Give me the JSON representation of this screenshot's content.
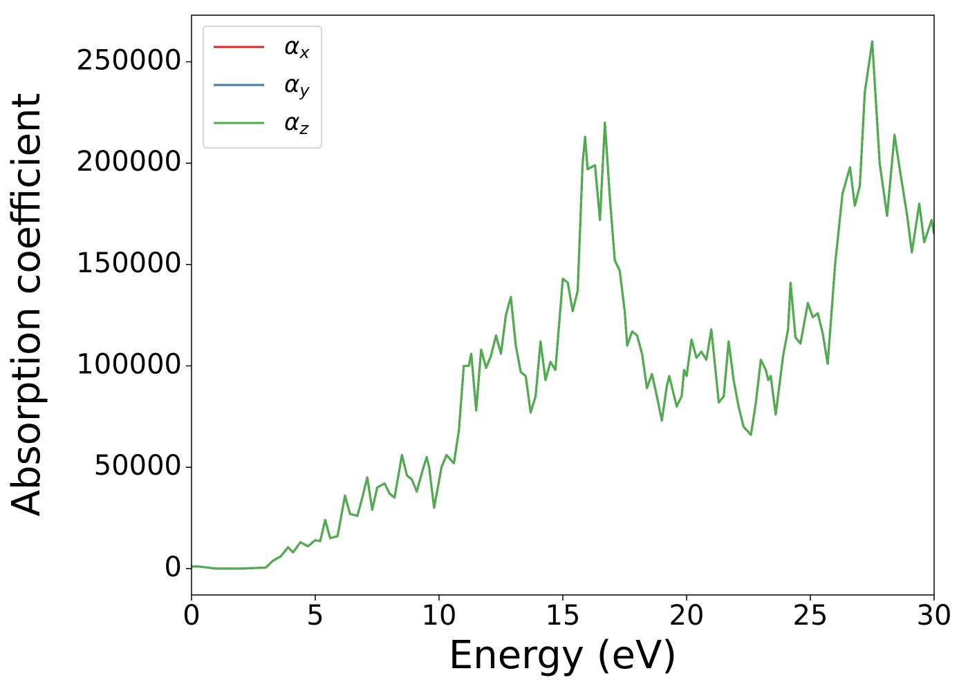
{
  "chart_data": {
    "type": "line",
    "xlabel": "Energy (eV)",
    "ylabel": "Absorption coefficient",
    "xlim": [
      0,
      30
    ],
    "ylim": [
      -13000,
      273000
    ],
    "xticks": [
      0,
      5,
      10,
      15,
      20,
      25,
      30
    ],
    "yticks": [
      0,
      50000,
      100000,
      150000,
      200000,
      250000
    ],
    "grid": false,
    "legend": "upper left",
    "x": [
      0,
      0.3,
      1,
      2,
      3,
      3.3,
      3.6,
      3.9,
      4.1,
      4.4,
      4.7,
      5,
      5.2,
      5.4,
      5.6,
      5.9,
      6.2,
      6.4,
      6.7,
      6.9,
      7.1,
      7.3,
      7.5,
      7.8,
      8,
      8.2,
      8.5,
      8.7,
      8.9,
      9.1,
      9.3,
      9.5,
      9.6,
      9.8,
      10.1,
      10.3,
      10.6,
      10.8,
      11,
      11.2,
      11.3,
      11.5,
      11.7,
      11.9,
      12.1,
      12.3,
      12.5,
      12.7,
      12.9,
      13.1,
      13.3,
      13.5,
      13.7,
      13.9,
      14.1,
      14.3,
      14.5,
      14.7,
      15,
      15.2,
      15.4,
      15.6,
      15.8,
      15.9,
      16,
      16.3,
      16.5,
      16.7,
      16.9,
      17.1,
      17.3,
      17.5,
      17.6,
      17.8,
      18,
      18.2,
      18.4,
      18.6,
      18.8,
      19,
      19.2,
      19.3,
      19.6,
      19.8,
      19.9,
      20,
      20.2,
      20.4,
      20.6,
      20.8,
      21,
      21.3,
      21.5,
      21.7,
      21.9,
      22.1,
      22.3,
      22.6,
      22.8,
      23,
      23.2,
      23.3,
      23.4,
      23.6,
      23.9,
      24.1,
      24.2,
      24.4,
      24.6,
      24.9,
      25.1,
      25.3,
      25.5,
      25.7,
      26,
      26.3,
      26.6,
      26.8,
      27,
      27.2,
      27.5,
      27.8,
      28.1,
      28.4,
      28.6,
      28.9,
      29.1,
      29.4,
      29.6,
      29.9,
      30
    ],
    "series": [
      {
        "name": "αx",
        "color": "#d62728",
        "values": [
          1000,
          1000,
          0,
          0,
          500,
          4000,
          6000,
          10500,
          8000,
          13000,
          11000,
          14000,
          13500,
          24000,
          15000,
          16000,
          36000,
          27000,
          26000,
          35000,
          45000,
          29000,
          40000,
          42000,
          37000,
          35000,
          56000,
          46000,
          44000,
          38000,
          47000,
          55000,
          50000,
          30000,
          50000,
          56000,
          52000,
          68000,
          100000,
          100000,
          106000,
          78000,
          108000,
          99000,
          105000,
          115000,
          106000,
          125000,
          134000,
          110000,
          97000,
          95000,
          77000,
          85000,
          112000,
          93000,
          102000,
          98000,
          143000,
          141000,
          127000,
          137000,
          200000,
          213000,
          197000,
          199000,
          172000,
          220000,
          183000,
          152000,
          147000,
          127000,
          110000,
          117000,
          115000,
          106000,
          89000,
          96000,
          85000,
          73000,
          90000,
          95000,
          80000,
          85000,
          98000,
          95000,
          113000,
          104000,
          107000,
          103000,
          118000,
          82000,
          85000,
          112000,
          93000,
          80000,
          70000,
          66000,
          82000,
          103000,
          98000,
          93000,
          95000,
          76000,
          105000,
          118000,
          141000,
          114000,
          111000,
          131000,
          124000,
          126000,
          116000,
          101000,
          150000,
          185000,
          198000,
          179000,
          189000,
          235000,
          260000,
          200000,
          174000,
          214000,
          198000,
          175000,
          156000,
          180000,
          161000,
          172000,
          165000
        ]
      },
      {
        "name": "αy",
        "color": "#3a7db5",
        "values": [
          1000,
          1000,
          0,
          0,
          500,
          4000,
          6000,
          10500,
          8000,
          13000,
          11000,
          14000,
          13500,
          24000,
          15000,
          16000,
          36000,
          27000,
          26000,
          35000,
          45000,
          29000,
          40000,
          42000,
          37000,
          35000,
          56000,
          46000,
          44000,
          38000,
          47000,
          55000,
          50000,
          30000,
          50000,
          56000,
          52000,
          68000,
          100000,
          100000,
          106000,
          78000,
          108000,
          99000,
          105000,
          115000,
          106000,
          125000,
          134000,
          110000,
          97000,
          95000,
          77000,
          85000,
          112000,
          93000,
          102000,
          98000,
          143000,
          141000,
          127000,
          137000,
          200000,
          213000,
          197000,
          199000,
          172000,
          220000,
          183000,
          152000,
          147000,
          127000,
          110000,
          117000,
          115000,
          106000,
          89000,
          96000,
          85000,
          73000,
          90000,
          95000,
          80000,
          85000,
          98000,
          95000,
          113000,
          104000,
          107000,
          103000,
          118000,
          82000,
          85000,
          112000,
          93000,
          80000,
          70000,
          66000,
          82000,
          103000,
          98000,
          93000,
          95000,
          76000,
          105000,
          118000,
          141000,
          114000,
          111000,
          131000,
          124000,
          126000,
          116000,
          101000,
          150000,
          185000,
          198000,
          179000,
          189000,
          235000,
          260000,
          200000,
          174000,
          214000,
          198000,
          175000,
          156000,
          180000,
          161000,
          172000,
          165000
        ]
      },
      {
        "name": "αz",
        "color": "#4daf4a",
        "values": [
          1000,
          1000,
          0,
          0,
          500,
          4000,
          6000,
          10500,
          8000,
          13000,
          11000,
          14000,
          13500,
          24000,
          15000,
          16000,
          36000,
          27000,
          26000,
          35000,
          45000,
          29000,
          40000,
          42000,
          37000,
          35000,
          56000,
          46000,
          44000,
          38000,
          47000,
          55000,
          50000,
          30000,
          50000,
          56000,
          52000,
          68000,
          100000,
          100000,
          106000,
          78000,
          108000,
          99000,
          105000,
          115000,
          106000,
          125000,
          134000,
          110000,
          97000,
          95000,
          77000,
          85000,
          112000,
          93000,
          102000,
          98000,
          143000,
          141000,
          127000,
          137000,
          200000,
          213000,
          197000,
          199000,
          172000,
          220000,
          183000,
          152000,
          147000,
          127000,
          110000,
          117000,
          115000,
          106000,
          89000,
          96000,
          85000,
          73000,
          90000,
          95000,
          80000,
          85000,
          98000,
          95000,
          113000,
          104000,
          107000,
          103000,
          118000,
          82000,
          85000,
          112000,
          93000,
          80000,
          70000,
          66000,
          82000,
          103000,
          98000,
          93000,
          95000,
          76000,
          105000,
          118000,
          141000,
          114000,
          111000,
          131000,
          124000,
          126000,
          116000,
          101000,
          150000,
          185000,
          198000,
          179000,
          189000,
          235000,
          260000,
          200000,
          174000,
          214000,
          198000,
          175000,
          156000,
          180000,
          161000,
          172000,
          165000
        ]
      }
    ]
  }
}
